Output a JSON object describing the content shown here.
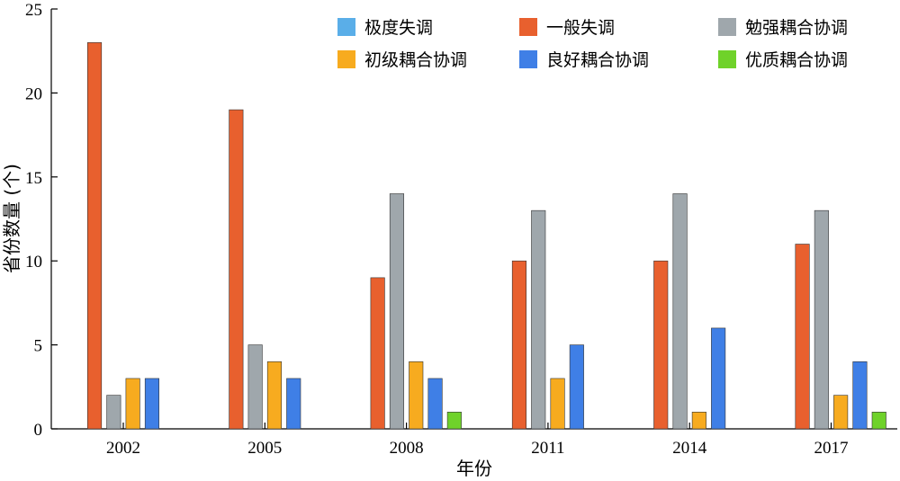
{
  "chart_data": {
    "type": "bar",
    "categories": [
      "2002",
      "2005",
      "2008",
      "2011",
      "2014",
      "2017"
    ],
    "series": [
      {
        "name": "极度失调",
        "color": "#5aaee8",
        "values": [
          0,
          0,
          0,
          0,
          0,
          0
        ]
      },
      {
        "name": "一般失调",
        "color": "#e8602e",
        "values": [
          23,
          19,
          9,
          10,
          10,
          11
        ]
      },
      {
        "name": "勉强耦合协调",
        "color": "#9fa7ac",
        "values": [
          2,
          5,
          14,
          13,
          14,
          13
        ]
      },
      {
        "name": "初级耦合协调",
        "color": "#f7ab1f",
        "values": [
          3,
          4,
          4,
          3,
          1,
          2
        ]
      },
      {
        "name": "良好耦合协调",
        "color": "#3f7fe6",
        "values": [
          3,
          3,
          3,
          5,
          6,
          4
        ]
      },
      {
        "name": "优质耦合协调",
        "color": "#6fd22a",
        "values": [
          0,
          0,
          1,
          0,
          0,
          1
        ]
      }
    ],
    "xlabel": "年份",
    "ylabel": "省份数量 (个)",
    "ylim": [
      0,
      25
    ],
    "yticks": [
      0,
      5,
      10,
      15,
      20,
      25
    ],
    "legend_position": "top-right",
    "grid": false
  }
}
